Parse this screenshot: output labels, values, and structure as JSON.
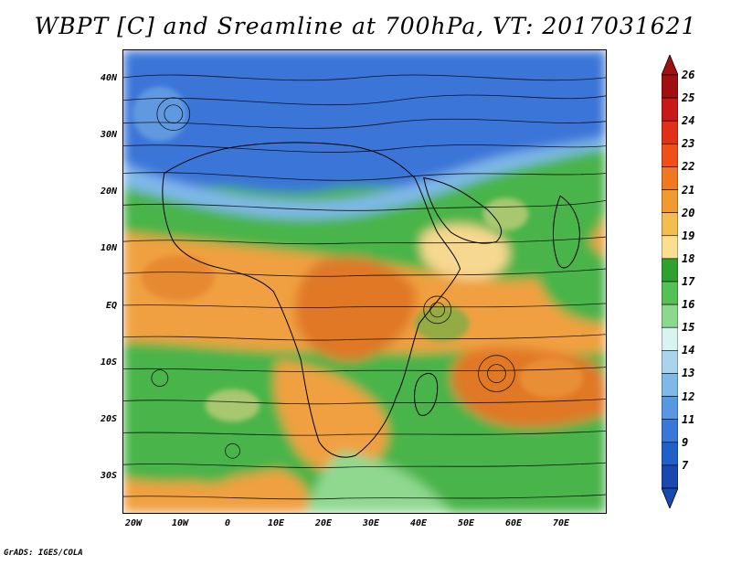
{
  "title": "WBPT [C] and Sreamline at 700hPa, VT: 2017031621",
  "footer": "GrADS: IGES/COLA",
  "lat_labels": [
    "40N",
    "30N",
    "20N",
    "10N",
    "EQ",
    "10S",
    "20S",
    "30S"
  ],
  "lon_labels": [
    "20W",
    "10W",
    "0",
    "10E",
    "20E",
    "30E",
    "40E",
    "50E",
    "60E",
    "70E"
  ],
  "colorbar": {
    "labels": [
      "26",
      "25",
      "24",
      "23",
      "22",
      "21",
      "20",
      "19",
      "18",
      "17",
      "16",
      "15",
      "14",
      "13",
      "12",
      "11",
      "9",
      "7"
    ],
    "colors": [
      "#a01010",
      "#c81818",
      "#e03018",
      "#f05018",
      "#f07820",
      "#f09a30",
      "#f5bc50",
      "#f8e090",
      "#30a030",
      "#55c055",
      "#8cd88c",
      "#d8f4f0",
      "#aad4ee",
      "#80b8e8",
      "#5898e0",
      "#3878d8",
      "#2060c8",
      "#1848b0"
    ]
  },
  "map_colors": {
    "cold": "#3a74d8",
    "cool": "#80b8ea",
    "green": "#48b448",
    "lightgreen": "#90d890",
    "orange": "#f0a040",
    "darkorange": "#e07828",
    "yellow": "#f6d890"
  }
}
